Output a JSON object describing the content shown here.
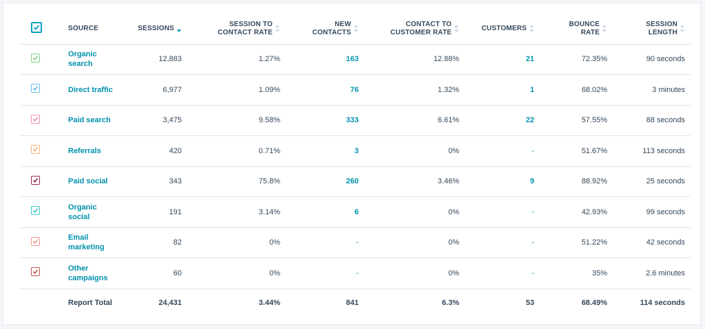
{
  "header": {
    "source": "SOURCE",
    "sessions": "SESSIONS",
    "session_to_contact_l1": "SESSION TO",
    "session_to_contact_l2": "CONTACT RATE",
    "new_contacts_l1": "NEW",
    "new_contacts_l2": "CONTACTS",
    "contact_to_customer_l1": "CONTACT TO",
    "contact_to_customer_l2": "CUSTOMER RATE",
    "customers": "CUSTOMERS",
    "bounce_l1": "BOUNCE",
    "bounce_l2": "RATE",
    "session_length_l1": "SESSION",
    "session_length_l2": "LENGTH"
  },
  "rows": [
    {
      "source_l1": "Organic",
      "source_l2": "search",
      "sessions": "12,883",
      "session_to_contact": "1.27%",
      "new_contacts": "163",
      "contact_to_customer": "12.88%",
      "customers": "21",
      "bounce": "72.35%",
      "length": "90 seconds",
      "color": "#7fd17f"
    },
    {
      "source_l1": "Direct traffic",
      "source_l2": "",
      "sessions": "6,977",
      "session_to_contact": "1.09%",
      "new_contacts": "76",
      "contact_to_customer": "1.32%",
      "customers": "1",
      "bounce": "68.02%",
      "length": "3 minutes",
      "color": "#6cb8e8"
    },
    {
      "source_l1": "Paid search",
      "source_l2": "",
      "sessions": "3,475",
      "session_to_contact": "9.58%",
      "new_contacts": "333",
      "contact_to_customer": "6.61%",
      "customers": "22",
      "bounce": "57.55%",
      "length": "88 seconds",
      "color": "#f08fa6"
    },
    {
      "source_l1": "Referrals",
      "source_l2": "",
      "sessions": "420",
      "session_to_contact": "0.71%",
      "new_contacts": "3",
      "contact_to_customer": "0%",
      "customers": "-",
      "bounce": "51.67%",
      "length": "113 seconds",
      "color": "#f5b07a"
    },
    {
      "source_l1": "Paid social",
      "source_l2": "",
      "sessions": "343",
      "session_to_contact": "75.8%",
      "new_contacts": "260",
      "contact_to_customer": "3.46%",
      "customers": "9",
      "bounce": "88.92%",
      "length": "25 seconds",
      "color": "#9b2d4f"
    },
    {
      "source_l1": "Organic",
      "source_l2": "social",
      "sessions": "191",
      "session_to_contact": "3.14%",
      "new_contacts": "6",
      "contact_to_customer": "0%",
      "customers": "-",
      "bounce": "42.93%",
      "length": "99 seconds",
      "color": "#3cc7c5"
    },
    {
      "source_l1": "Email",
      "source_l2": "marketing",
      "sessions": "82",
      "session_to_contact": "0%",
      "new_contacts": "-",
      "contact_to_customer": "0%",
      "customers": "-",
      "bounce": "51.22%",
      "length": "42 seconds",
      "color": "#f29a8a"
    },
    {
      "source_l1": "Other",
      "source_l2": "campaigns",
      "sessions": "60",
      "session_to_contact": "0%",
      "new_contacts": "-",
      "contact_to_customer": "0%",
      "customers": "-",
      "bounce": "35%",
      "length": "2.6 minutes",
      "color": "#c0504d"
    }
  ],
  "total": {
    "label": "Report Total",
    "sessions": "24,431",
    "session_to_contact": "3.44%",
    "new_contacts": "841",
    "contact_to_customer": "6.3%",
    "customers": "53",
    "bounce": "68.49%",
    "length": "114 seconds"
  },
  "accent": "#00a4bd",
  "link_color": "#0091ae",
  "icons": {
    "checkbox": "check-icon",
    "sort": "sort-arrows-icon"
  }
}
